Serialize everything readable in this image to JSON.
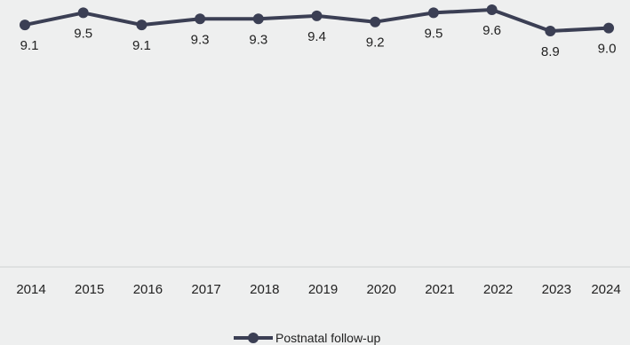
{
  "colors": {
    "background": "#eeefef",
    "series": "#3b3f54",
    "axis": "#cfd0d0",
    "text": "#222222"
  },
  "chart_data": {
    "type": "line",
    "title": "",
    "xlabel": "",
    "ylabel": "",
    "x": [
      "2014",
      "2015",
      "2016",
      "2017",
      "2018",
      "2019",
      "2020",
      "2021",
      "2022",
      "2023",
      "2024"
    ],
    "series": [
      {
        "name": "Postnatal follow-up",
        "values": [
          9.1,
          9.5,
          9.1,
          9.3,
          9.3,
          9.4,
          9.2,
          9.5,
          9.6,
          8.9,
          9.0
        ],
        "labels": [
          "9.1",
          "9.5",
          "9.1",
          "9.3",
          "9.3",
          "9.4",
          "9.2",
          "9.5",
          "9.6",
          "8.9",
          "9.0"
        ]
      }
    ],
    "grid": false,
    "y_axis_visible": false,
    "legend": "bottom-center"
  }
}
